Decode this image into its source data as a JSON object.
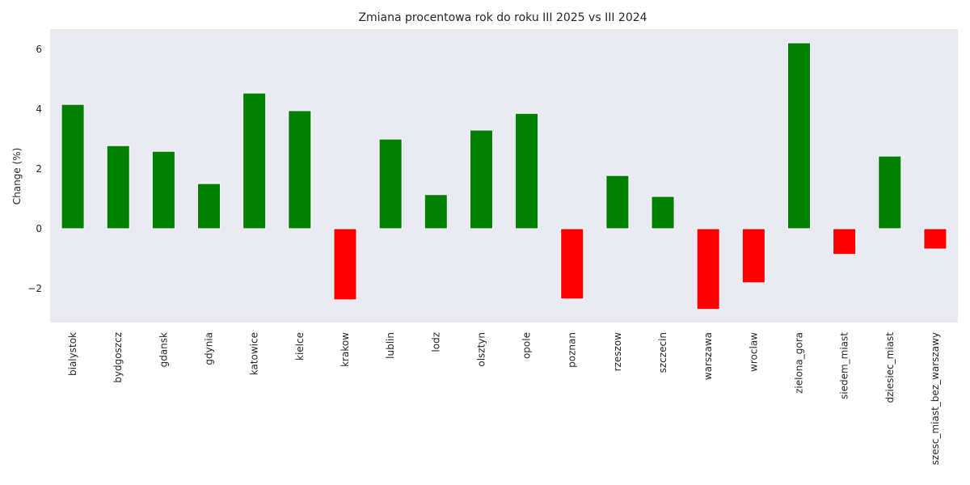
{
  "chart_data": {
    "type": "bar",
    "title": "Zmiana procentowa rok do roku III 2025 vs III 2024",
    "xlabel": "",
    "ylabel": "Change (%)",
    "ylim": [
      -3.14,
      6.68
    ],
    "yticks": [
      -2,
      0,
      2,
      4,
      6
    ],
    "ytick_labels": [
      "−2",
      "0",
      "2",
      "4",
      "6"
    ],
    "grid": false,
    "background_color": "#eaeaf2",
    "positive_color": "#008000",
    "negative_color": "#ff0000",
    "categories": [
      "bialystok",
      "bydgoszcz",
      "gdansk",
      "gdynia",
      "katowice",
      "kielce",
      "krakow",
      "lublin",
      "lodz",
      "olsztyn",
      "opole",
      "poznan",
      "rzeszow",
      "szczecin",
      "warszawa",
      "wroclaw",
      "zielona_gora",
      "siedem_miast",
      "dziesiec_miast",
      "szesc_miast_bez_warszawy"
    ],
    "values": [
      4.16,
      2.78,
      2.59,
      1.51,
      4.54,
      3.95,
      -2.38,
      3.0,
      1.14,
      3.3,
      3.86,
      -2.35,
      1.78,
      1.08,
      -2.7,
      -1.81,
      6.22,
      -0.86,
      2.43,
      -0.68
    ]
  }
}
